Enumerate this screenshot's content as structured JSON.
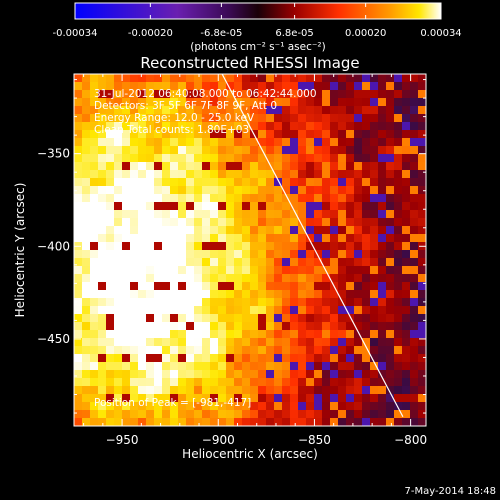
{
  "colorbar": {
    "tick_labels": [
      "-0.00034",
      "-0.00020",
      "-6.8e-05",
      "6.8e-05",
      "0.00020",
      "0.00034"
    ],
    "tick_values": [
      -0.00034,
      -0.0002,
      -6.8e-05,
      6.8e-05,
      0.0002,
      0.00034
    ],
    "range": [
      -0.00034,
      0.00034
    ],
    "units": "(photons cm⁻² s⁻¹ asec⁻²)"
  },
  "chart_data": {
    "type": "heatmap",
    "title": "Reconstructed RHESSI Image",
    "xlabel": "Heliocentric X (arcsec)",
    "ylabel": "Heliocentric Y (arcsec)",
    "xlim": [
      -975,
      -792
    ],
    "ylim": [
      -497,
      -307
    ],
    "x_ticks": [
      -950,
      -900,
      -850,
      -800
    ],
    "y_ticks": [
      -450,
      -400,
      -350
    ],
    "x_tick_labels": [
      "−950",
      "−900",
      "−850",
      "−800"
    ],
    "y_tick_labels": [
      "−450",
      "−400",
      "−350"
    ],
    "annotations": [
      "31-Jul-2012 06:40:08.000 to 06:42:44.000",
      "Detectors: 3F 5F 6F 7F 8F 9F, Att 0",
      "Energy Range: 12.0 - 25.0 keV",
      "Clean     Total counts: 1.80E+03"
    ],
    "peak_label": "Position of Peak = [-981,-417]",
    "peak": [
      -981,
      -417
    ],
    "limb_line": [
      [
        -898,
        -307
      ],
      [
        -804,
        -492
      ]
    ],
    "colormap": [
      "#0000ff",
      "#5a1a9e",
      "#3a0a40",
      "#a00000",
      "#ff3000",
      "#ff9a00",
      "#ffe800",
      "#ffffff"
    ],
    "legend_position": "top"
  },
  "footer": {
    "date": "7-May-2014 18:48"
  }
}
